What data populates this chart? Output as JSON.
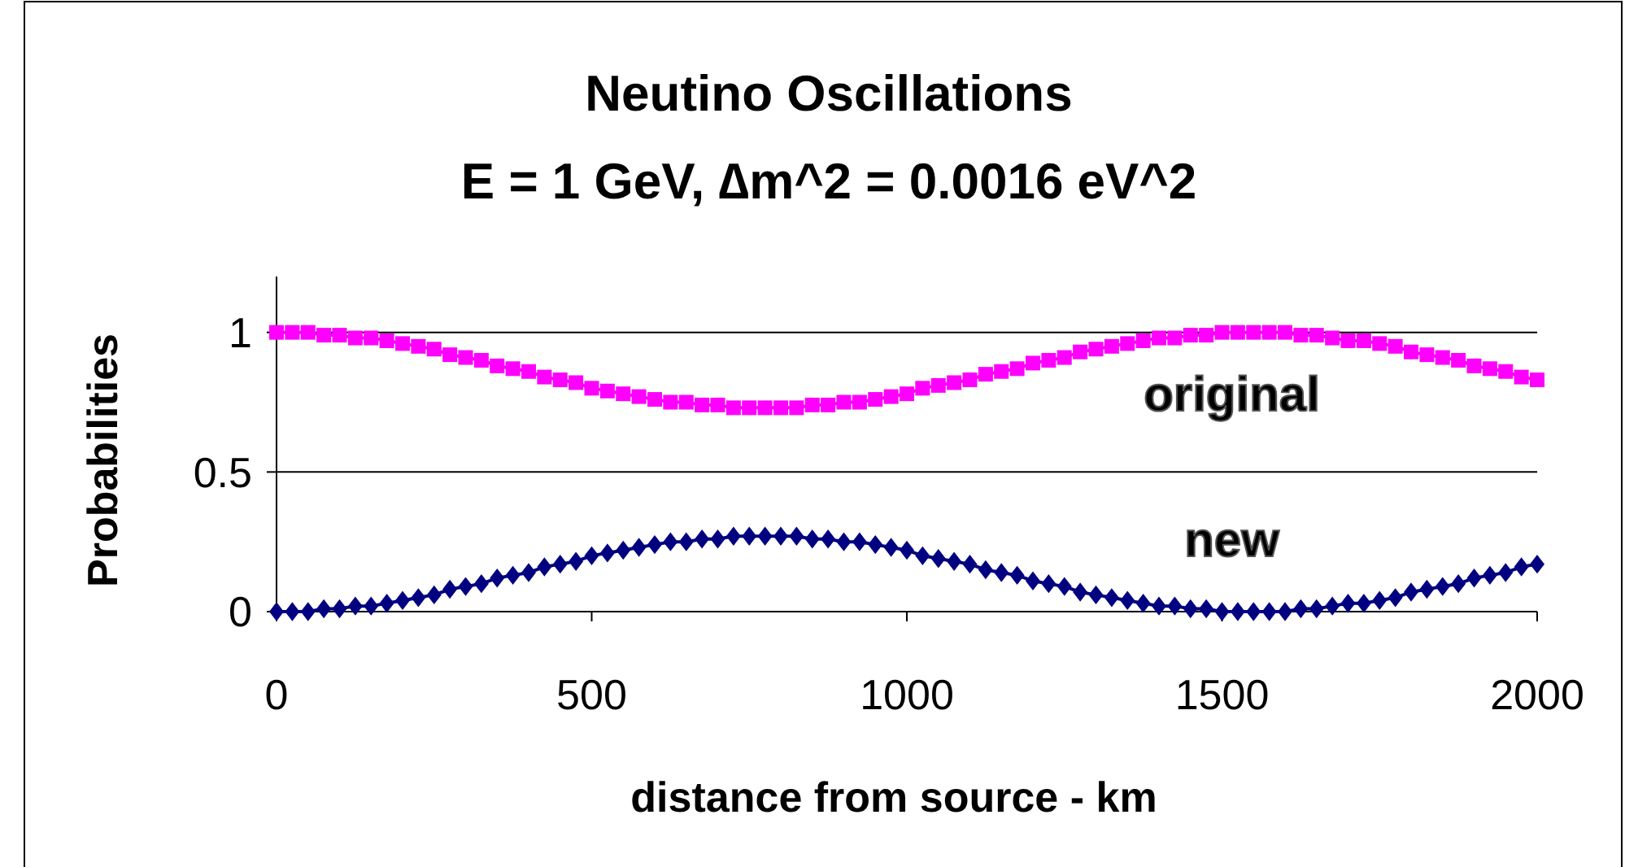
{
  "chart_data": {
    "type": "line",
    "title": "Neutino Oscillations",
    "subtitle": "E = 1 GeV, ∆m^2 = 0.0016 eV^2",
    "xlabel": "distance from source - km",
    "ylabel": "Probabilities",
    "x": [
      0,
      25,
      50,
      75,
      100,
      125,
      150,
      175,
      200,
      225,
      250,
      275,
      300,
      325,
      350,
      375,
      400,
      425,
      450,
      475,
      500,
      525,
      550,
      575,
      600,
      625,
      650,
      675,
      700,
      725,
      750,
      775,
      800,
      825,
      850,
      875,
      900,
      925,
      950,
      975,
      1000,
      1025,
      1050,
      1075,
      1100,
      1125,
      1150,
      1175,
      1200,
      1225,
      1250,
      1275,
      1300,
      1325,
      1350,
      1375,
      1400,
      1425,
      1450,
      1475,
      1500,
      1525,
      1550,
      1575,
      1600,
      1625,
      1650,
      1675,
      1700,
      1725,
      1750,
      1775,
      1800,
      1825,
      1850,
      1875,
      1900,
      1925,
      1950,
      1975,
      2000
    ],
    "series": [
      {
        "name": "original",
        "color": "#ff00ff",
        "marker": "square",
        "values": [
          1,
          1,
          1,
          0.99,
          0.99,
          0.98,
          0.98,
          0.97,
          0.96,
          0.95,
          0.94,
          0.92,
          0.91,
          0.9,
          0.88,
          0.87,
          0.86,
          0.84,
          0.83,
          0.82,
          0.8,
          0.79,
          0.78,
          0.77,
          0.76,
          0.75,
          0.75,
          0.74,
          0.74,
          0.73,
          0.73,
          0.73,
          0.73,
          0.73,
          0.74,
          0.74,
          0.75,
          0.75,
          0.76,
          0.77,
          0.78,
          0.8,
          0.81,
          0.82,
          0.83,
          0.85,
          0.86,
          0.87,
          0.89,
          0.9,
          0.91,
          0.93,
          0.94,
          0.95,
          0.96,
          0.97,
          0.98,
          0.98,
          0.99,
          0.99,
          1,
          1,
          1,
          1,
          1,
          0.99,
          0.99,
          0.98,
          0.97,
          0.97,
          0.96,
          0.95,
          0.93,
          0.92,
          0.91,
          0.9,
          0.88,
          0.87,
          0.86,
          0.84,
          0.83
        ]
      },
      {
        "name": "new",
        "color": "#000080",
        "marker": "diamond",
        "values": [
          0,
          0,
          0,
          0.01,
          0.01,
          0.02,
          0.02,
          0.03,
          0.04,
          0.05,
          0.06,
          0.08,
          0.09,
          0.1,
          0.12,
          0.13,
          0.14,
          0.16,
          0.17,
          0.18,
          0.2,
          0.21,
          0.22,
          0.23,
          0.24,
          0.25,
          0.25,
          0.26,
          0.26,
          0.27,
          0.27,
          0.27,
          0.27,
          0.27,
          0.26,
          0.26,
          0.25,
          0.25,
          0.24,
          0.23,
          0.22,
          0.2,
          0.19,
          0.18,
          0.17,
          0.15,
          0.14,
          0.13,
          0.11,
          0.1,
          0.09,
          0.07,
          0.06,
          0.05,
          0.04,
          0.03,
          0.02,
          0.02,
          0.01,
          0.01,
          0,
          0,
          0,
          0,
          0,
          0.01,
          0.01,
          0.02,
          0.03,
          0.03,
          0.04,
          0.05,
          0.07,
          0.08,
          0.09,
          0.1,
          0.12,
          0.13,
          0.14,
          0.16,
          0.17
        ]
      }
    ],
    "xlim": [
      0,
      2000
    ],
    "xticks": [
      0,
      500,
      1000,
      1500,
      2000
    ],
    "ylim": [
      0,
      1.2
    ],
    "yticks": [
      0,
      0.5,
      1
    ],
    "grid": "y"
  }
}
